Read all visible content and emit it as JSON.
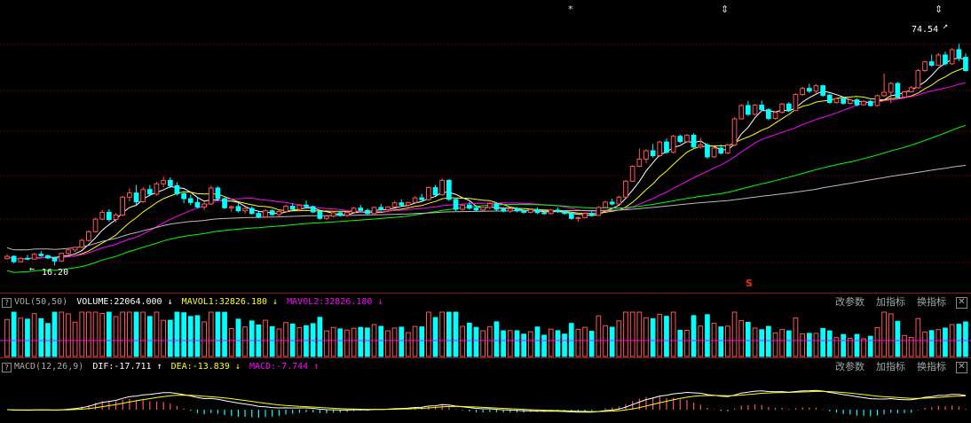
{
  "markers": {
    "asterisk": "*",
    "arrows": "⇕",
    "s_mark": "S"
  },
  "price_pane": {
    "high_label": "74.54",
    "low_label": "16.20",
    "high_arrow": "↗",
    "low_arrow": "←"
  },
  "vol_pane": {
    "help": "?",
    "name": "VOL(50,50)",
    "volume": "VOLUME:22064.000",
    "volume_arrow": "↓",
    "mavol1": "MAVOL1:32826.180",
    "mavol1_arrow": "↓",
    "mavol2": "MAVOL2:32826.180",
    "mavol2_arrow": "↓"
  },
  "macd_pane": {
    "help": "?",
    "name": "MACD(12,26,9)",
    "dif": "DIF:-17.711",
    "dif_arrow": "↑",
    "dea": "DEA:-13.839",
    "dea_arrow": "↓",
    "macd": "MACD:-7.744",
    "macd_arrow": "↑"
  },
  "toolbar": {
    "change_params": "改参数",
    "add_indicator": "加指标",
    "switch_indicator": "换指标",
    "close": "✕"
  },
  "colors": {
    "up": "#ff5555",
    "down": "#00ffff",
    "ma_white": "#ffffff",
    "ma_yellow": "#ffff00",
    "ma_magenta": "#ff00ff",
    "ma_green": "#00ff00",
    "ma_gray": "#bbbbbb",
    "grid": "#5a0000"
  },
  "chart_data": {
    "type": "candlestick",
    "price_range": [
      10,
      80
    ],
    "grid": true,
    "candles": [
      [
        18,
        19.2,
        17.8,
        18.6
      ],
      [
        18.6,
        18.9,
        16.8,
        17.2
      ],
      [
        17.2,
        18.4,
        17,
        18.1
      ],
      [
        18.1,
        19,
        17.6,
        17.9
      ],
      [
        17.9,
        19.5,
        17.8,
        19.2
      ],
      [
        19.2,
        20,
        18.5,
        18.8
      ],
      [
        18.8,
        19.1,
        17.9,
        18.2
      ],
      [
        18.2,
        18.5,
        16.2,
        17.4
      ],
      [
        17.4,
        19.6,
        17.2,
        19.4
      ],
      [
        19.4,
        20.8,
        19,
        20.3
      ],
      [
        20.3,
        21.2,
        19.8,
        21
      ],
      [
        21,
        23.2,
        20.7,
        22.8
      ],
      [
        22.8,
        25.5,
        22.5,
        25.1
      ],
      [
        25.1,
        28.8,
        24.9,
        28.4
      ],
      [
        28.4,
        30.8,
        28.1,
        30.2
      ],
      [
        30.2,
        31,
        27.8,
        28.3
      ],
      [
        28.3,
        30,
        27.6,
        29.5
      ],
      [
        29.5,
        34.5,
        29.2,
        34.2
      ],
      [
        34.2,
        36.5,
        33.1,
        35.3
      ],
      [
        35.3,
        37.4,
        32.1,
        33
      ],
      [
        33,
        36.8,
        32.6,
        36.2
      ],
      [
        36.2,
        37.4,
        34.4,
        35
      ],
      [
        35,
        38.2,
        34.6,
        37.7
      ],
      [
        37.7,
        39.6,
        36.8,
        38.6
      ],
      [
        38.6,
        39.4,
        36.6,
        37.2
      ],
      [
        37.2,
        38.1,
        34.6,
        35.1
      ],
      [
        35.1,
        35.8,
        32.6,
        33.8
      ],
      [
        33.8,
        34.9,
        32.1,
        32.8
      ],
      [
        32.8,
        34,
        31.2,
        31.6
      ],
      [
        31.6,
        33,
        30.8,
        32.4
      ],
      [
        32.4,
        37.2,
        32.1,
        36.6
      ],
      [
        36.6,
        37,
        33.5,
        33.8
      ],
      [
        33.8,
        34.2,
        31.1,
        31.4
      ],
      [
        31.4,
        32,
        30.4,
        31.7
      ],
      [
        31.7,
        32.6,
        30.2,
        30.6
      ],
      [
        30.6,
        31.5,
        29.8,
        31.2
      ],
      [
        31.2,
        31.8,
        29.6,
        29.9
      ],
      [
        29.9,
        30.4,
        28.6,
        29
      ],
      [
        29,
        31,
        28.8,
        30.6
      ],
      [
        30.6,
        31,
        29.3,
        29.6
      ],
      [
        29.6,
        30.7,
        29.2,
        30.4
      ],
      [
        30.4,
        32.2,
        30.1,
        31.8
      ],
      [
        31.8,
        32.6,
        30.6,
        31
      ],
      [
        31,
        32.4,
        30.7,
        32.1
      ],
      [
        32.1,
        33.3,
        31.4,
        31.7
      ],
      [
        31.7,
        32,
        30,
        30.3
      ],
      [
        30.3,
        30.7,
        28.3,
        28.6
      ],
      [
        28.6,
        29.5,
        28.2,
        29.2
      ],
      [
        29.2,
        30.4,
        28.8,
        30.1
      ],
      [
        30.1,
        30.6,
        29.1,
        29.4
      ],
      [
        29.4,
        30.4,
        29,
        30.2
      ],
      [
        30.2,
        31.6,
        30,
        31.3
      ],
      [
        31.3,
        32.1,
        30.4,
        30.7
      ],
      [
        30.7,
        31.2,
        29.6,
        29.9
      ],
      [
        29.9,
        31.7,
        29.8,
        31.5
      ],
      [
        31.5,
        32.4,
        30.6,
        30.9
      ],
      [
        30.9,
        31.8,
        30.4,
        31.6
      ],
      [
        31.6,
        33.2,
        31.5,
        32.7
      ],
      [
        32.7,
        33.6,
        31.8,
        32.1
      ],
      [
        32.1,
        33,
        31.7,
        32.8
      ],
      [
        32.8,
        34.4,
        32.5,
        34
      ],
      [
        34,
        35.1,
        33.2,
        33.5
      ],
      [
        33.5,
        37,
        33.3,
        36.7
      ],
      [
        36.7,
        37.4,
        34.5,
        34.8
      ],
      [
        34.8,
        39.1,
        34.6,
        38.6
      ],
      [
        38.6,
        38.9,
        33.2,
        33.6
      ],
      [
        33.6,
        34,
        30.5,
        31
      ],
      [
        31,
        32.4,
        30.6,
        32.1
      ],
      [
        32.1,
        33,
        30.9,
        31.3
      ],
      [
        31.3,
        32.1,
        30.4,
        30.8
      ],
      [
        30.8,
        31.7,
        30.3,
        31.5
      ],
      [
        31.5,
        32.8,
        31,
        32.5
      ],
      [
        32.5,
        32.8,
        30.6,
        31
      ],
      [
        31,
        31.6,
        30.2,
        30.5
      ],
      [
        30.5,
        31.4,
        30,
        31.2
      ],
      [
        31.2,
        31.6,
        30.2,
        30.6
      ],
      [
        30.6,
        30.9,
        29.8,
        30.2
      ],
      [
        30.2,
        31.2,
        29.9,
        30.9
      ],
      [
        30.9,
        31.5,
        29.8,
        30.1
      ],
      [
        30.1,
        30.6,
        29.6,
        29.9
      ],
      [
        29.9,
        31.1,
        29.6,
        30.8
      ],
      [
        30.8,
        31.5,
        30.1,
        30.4
      ],
      [
        30.4,
        30.7,
        29.6,
        29.9
      ],
      [
        29.9,
        30.2,
        28.3,
        28.6
      ],
      [
        28.6,
        29.1,
        27.7,
        28.8
      ],
      [
        28.8,
        30.2,
        28.6,
        29.9
      ],
      [
        29.9,
        30.4,
        29.1,
        29.4
      ],
      [
        29.4,
        31.8,
        29.2,
        31.5
      ],
      [
        31.5,
        33.2,
        31.3,
        32.9
      ],
      [
        32.9,
        33.8,
        32,
        32.4
      ],
      [
        32.4,
        34.6,
        32.2,
        34.2
      ],
      [
        34.2,
        38.7,
        34,
        38.4
      ],
      [
        38.4,
        42.6,
        38.2,
        42.3
      ],
      [
        42.3,
        47,
        42.1,
        44.2
      ],
      [
        44.2,
        46.8,
        43.2,
        46.4
      ],
      [
        46.4,
        48.2,
        44.6,
        45.1
      ],
      [
        45.1,
        49,
        44.8,
        48.7
      ],
      [
        48.7,
        49.6,
        45.6,
        46
      ],
      [
        46,
        50.6,
        45.7,
        50.2
      ],
      [
        50.2,
        50.7,
        48.4,
        48.8
      ],
      [
        48.8,
        50.8,
        48.5,
        50.5
      ],
      [
        50.5,
        51,
        46.8,
        47.4
      ],
      [
        47.4,
        49.8,
        47,
        47.9
      ],
      [
        47.9,
        48.4,
        44.3,
        44.8
      ],
      [
        44.8,
        47.5,
        44.5,
        47.1
      ],
      [
        47.1,
        48,
        45.4,
        45.8
      ],
      [
        45.8,
        48.2,
        45.5,
        47.9
      ],
      [
        47.9,
        55.2,
        47.6,
        54.8
      ],
      [
        54.8,
        58.7,
        54.6,
        58.3
      ],
      [
        58.3,
        59.5,
        55.6,
        56
      ],
      [
        56,
        58.7,
        55.7,
        58.4
      ],
      [
        58.4,
        59.6,
        56.8,
        57.2
      ],
      [
        57.2,
        57.6,
        54.4,
        54.9
      ],
      [
        54.9,
        56.8,
        54.6,
        56.5
      ],
      [
        56.5,
        59,
        56.2,
        58.7
      ],
      [
        58.7,
        59.2,
        56.6,
        57
      ],
      [
        57,
        61.5,
        56.8,
        61.2
      ],
      [
        61.2,
        63.2,
        60.9,
        62.8
      ],
      [
        62.8,
        64,
        61.6,
        62.1
      ],
      [
        62.1,
        63.9,
        61.5,
        63.5
      ],
      [
        63.5,
        63.8,
        60.6,
        61
      ],
      [
        61,
        61.4,
        58.7,
        59.1
      ],
      [
        59.1,
        60.4,
        58.8,
        60.1
      ],
      [
        60.1,
        60.6,
        58.5,
        58.9
      ],
      [
        58.9,
        60.1,
        58.6,
        59.8
      ],
      [
        59.8,
        60.2,
        58.1,
        58.5
      ],
      [
        58.5,
        59.7,
        58.3,
        59.4
      ],
      [
        59.4,
        59.8,
        58,
        58.3
      ],
      [
        58.3,
        61.2,
        58,
        60.9
      ],
      [
        60.9,
        66.7,
        60.6,
        61.8
      ],
      [
        61.8,
        64.5,
        58.9,
        64.1
      ],
      [
        64.1,
        64.5,
        60.1,
        60.5
      ],
      [
        60.5,
        62.2,
        60.2,
        61.9
      ],
      [
        61.9,
        63.4,
        61.7,
        63
      ],
      [
        63,
        67.9,
        62.8,
        67.5
      ],
      [
        67.5,
        70.1,
        67.2,
        69.8
      ],
      [
        69.8,
        71.7,
        68.5,
        68.9
      ],
      [
        68.9,
        72.1,
        68.7,
        71.6
      ],
      [
        71.6,
        72.5,
        68.8,
        69.3
      ],
      [
        69.3,
        73.4,
        69,
        73
      ],
      [
        73,
        74.54,
        70,
        71
      ],
      [
        71,
        72,
        67.2,
        67.5
      ]
    ],
    "ma": [
      {
        "color": "#ffffff",
        "period": 5
      },
      {
        "color": "#ffff00",
        "period": 10
      },
      {
        "color": "#ff00ff",
        "period": 20
      },
      {
        "color": "#00ff00",
        "period": 60
      },
      {
        "color": "#bbbbbb",
        "period": 120
      }
    ],
    "volume": {
      "mavol": 32826.18,
      "last": 22064.0
    },
    "macd": {
      "dif": -17.711,
      "dea": -13.839,
      "macd": -7.744
    }
  }
}
